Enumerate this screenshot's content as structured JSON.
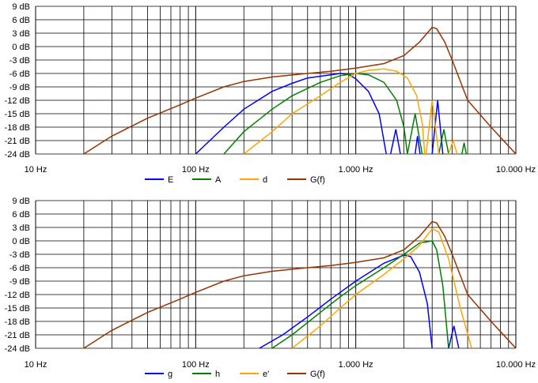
{
  "chart_data": [
    {
      "type": "line",
      "x_scale": "log",
      "xlim": [
        10,
        10000
      ],
      "ylim": [
        -24,
        9
      ],
      "yticks": [
        "9 dB",
        "6 dB",
        "3 dB",
        "0 dB",
        "-3 dB",
        "-6 dB",
        "-9 dB",
        "-12 dB",
        "-15 dB",
        "-18 dB",
        "-21 dB",
        "-24 dB"
      ],
      "xticks": [
        "10 Hz",
        "100 Hz",
        "1.000 Hz",
        "10.000 Hz"
      ],
      "grid": true,
      "legend_position": "bottom",
      "series": [
        {
          "name": "E",
          "color": "#0000ff",
          "points": [
            [
              100,
              -24
            ],
            [
              150,
              -18
            ],
            [
              200,
              -14
            ],
            [
              300,
              -10
            ],
            [
              400,
              -8.2
            ],
            [
              500,
              -7
            ],
            [
              700,
              -6.3
            ],
            [
              800,
              -6
            ],
            [
              900,
              -6.2
            ],
            [
              1000,
              -7.2
            ],
            [
              1200,
              -10
            ],
            [
              1400,
              -15
            ],
            [
              1550,
              -24
            ]
          ]
        },
        {
          "name": "A",
          "color": "#008000",
          "points": [
            [
              150,
              -24
            ],
            [
              200,
              -19
            ],
            [
              300,
              -14
            ],
            [
              400,
              -11
            ],
            [
              600,
              -8
            ],
            [
              800,
              -6.5
            ],
            [
              1000,
              -6
            ],
            [
              1200,
              -6.3
            ],
            [
              1500,
              -8
            ],
            [
              1800,
              -12
            ],
            [
              2000,
              -18
            ],
            [
              2100,
              -24
            ]
          ]
        },
        {
          "name": "d",
          "color": "#ffa500",
          "points": [
            [
              200,
              -24
            ],
            [
              300,
              -19
            ],
            [
              400,
              -15
            ],
            [
              600,
              -11
            ],
            [
              800,
              -8
            ],
            [
              1000,
              -6
            ],
            [
              1200,
              -5.3
            ],
            [
              1500,
              -5
            ],
            [
              1800,
              -5.5
            ],
            [
              2100,
              -7
            ],
            [
              2400,
              -11
            ],
            [
              2600,
              -17
            ],
            [
              2700,
              -24
            ]
          ]
        },
        {
          "name": "G(f)",
          "color": "#993300",
          "points": [
            [
              20,
              -24
            ],
            [
              30,
              -20
            ],
            [
              50,
              -16
            ],
            [
              80,
              -13
            ],
            [
              100,
              -11.5
            ],
            [
              150,
              -9
            ],
            [
              200,
              -7.8
            ],
            [
              300,
              -6.8
            ],
            [
              500,
              -6
            ],
            [
              700,
              -5.5
            ],
            [
              1000,
              -4.8
            ],
            [
              1500,
              -3.8
            ],
            [
              2000,
              -2
            ],
            [
              2500,
              1
            ],
            [
              3000,
              4.3
            ],
            [
              3200,
              4
            ],
            [
              3600,
              1
            ],
            [
              4000,
              -3
            ],
            [
              5000,
              -12
            ],
            [
              7000,
              -18
            ],
            [
              10000,
              -24
            ]
          ]
        },
        {
          "name": "",
          "color": "#0000ff",
          "points": [
            [
              1650,
              -24
            ],
            [
              1780,
              -18.5
            ],
            [
              1900,
              -24
            ]
          ]
        },
        {
          "name": "",
          "color": "#0000ff",
          "points": [
            [
              2350,
              -24
            ],
            [
              2430,
              -20
            ],
            [
              2520,
              -24
            ]
          ]
        },
        {
          "name": "",
          "color": "#0000ff",
          "points": [
            [
              3000,
              -24
            ],
            [
              3250,
              -12
            ],
            [
              3500,
              -24
            ]
          ]
        },
        {
          "name": "",
          "color": "#008000",
          "points": [
            [
              2100,
              -24
            ],
            [
              2350,
              -15
            ],
            [
              2600,
              -24
            ]
          ]
        },
        {
          "name": "",
          "color": "#008000",
          "points": [
            [
              3300,
              -24
            ],
            [
              3550,
              -18.5
            ],
            [
              3800,
              -24
            ]
          ]
        },
        {
          "name": "",
          "color": "#008000",
          "points": [
            [
              4600,
              -24
            ],
            [
              4750,
              -21.5
            ],
            [
              4900,
              -24
            ]
          ]
        },
        {
          "name": "",
          "color": "#ffa500",
          "points": [
            [
              2750,
              -24
            ],
            [
              3000,
              -12
            ],
            [
              3300,
              -24
            ]
          ]
        },
        {
          "name": "",
          "color": "#ffa500",
          "points": [
            [
              3800,
              -24
            ],
            [
              4050,
              -21
            ],
            [
              4300,
              -24
            ]
          ]
        }
      ]
    },
    {
      "type": "line",
      "x_scale": "log",
      "xlim": [
        10,
        10000
      ],
      "ylim": [
        -24,
        9
      ],
      "yticks": [
        "9 dB",
        "6 dB",
        "3 dB",
        "0 dB",
        "-3 dB",
        "-6 dB",
        "-9 dB",
        "-12 dB",
        "-15 dB",
        "-18 dB",
        "-21 dB",
        "-24 dB"
      ],
      "xticks": [
        "10 Hz",
        "100 Hz",
        "1.000 Hz",
        "10.000 Hz"
      ],
      "grid": true,
      "legend_position": "bottom",
      "series": [
        {
          "name": "g",
          "color": "#0000ff",
          "points": [
            [
              250,
              -24
            ],
            [
              350,
              -21
            ],
            [
              500,
              -17
            ],
            [
              700,
              -13
            ],
            [
              1000,
              -9
            ],
            [
              1500,
              -5
            ],
            [
              2000,
              -3.2
            ],
            [
              2200,
              -3.5
            ],
            [
              2500,
              -7
            ],
            [
              2800,
              -14
            ],
            [
              3000,
              -24
            ]
          ]
        },
        {
          "name": "h",
          "color": "#008000",
          "points": [
            [
              300,
              -24
            ],
            [
              400,
              -21
            ],
            [
              600,
              -16
            ],
            [
              800,
              -12.5
            ],
            [
              1000,
              -10
            ],
            [
              1500,
              -6
            ],
            [
              2000,
              -3
            ],
            [
              2500,
              -0.5
            ],
            [
              3000,
              0
            ],
            [
              3200,
              -2
            ],
            [
              3500,
              -10
            ],
            [
              3800,
              -24
            ]
          ]
        },
        {
          "name": "e'",
          "color": "#ffa500",
          "points": [
            [
              400,
              -24
            ],
            [
              600,
              -19
            ],
            [
              800,
              -15
            ],
            [
              1000,
              -12
            ],
            [
              1500,
              -7.5
            ],
            [
              2000,
              -4
            ],
            [
              2500,
              -1
            ],
            [
              3000,
              2.7
            ],
            [
              3300,
              2
            ],
            [
              3800,
              -4
            ],
            [
              4500,
              -15
            ],
            [
              5300,
              -24
            ]
          ]
        },
        {
          "name": "G(f)",
          "color": "#993300",
          "points": [
            [
              20,
              -24
            ],
            [
              30,
              -20
            ],
            [
              50,
              -16
            ],
            [
              80,
              -13
            ],
            [
              100,
              -11.5
            ],
            [
              150,
              -9
            ],
            [
              200,
              -7.8
            ],
            [
              300,
              -6.8
            ],
            [
              500,
              -6
            ],
            [
              700,
              -5.5
            ],
            [
              1000,
              -4.8
            ],
            [
              1500,
              -3.8
            ],
            [
              2000,
              -2
            ],
            [
              2500,
              1
            ],
            [
              3000,
              4.3
            ],
            [
              3200,
              4
            ],
            [
              3600,
              1
            ],
            [
              4000,
              -3
            ],
            [
              5000,
              -12
            ],
            [
              7000,
              -18
            ],
            [
              10000,
              -24
            ]
          ]
        },
        {
          "name": "",
          "color": "#0000ff",
          "points": [
            [
              3800,
              -24
            ],
            [
              4100,
              -19
            ],
            [
              4400,
              -24
            ]
          ]
        }
      ]
    }
  ]
}
